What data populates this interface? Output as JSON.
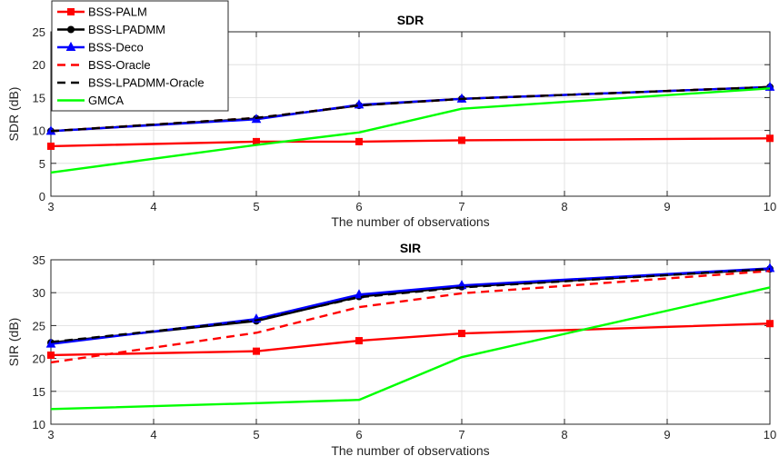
{
  "chart_data": [
    {
      "type": "line",
      "title": "SDR",
      "xlabel": "The number of observations",
      "ylabel": "SDR (dB)",
      "xlim": [
        3,
        10
      ],
      "ylim": [
        0,
        25
      ],
      "xticks": [
        3,
        4,
        5,
        6,
        7,
        8,
        9,
        10
      ],
      "yticks": [
        0,
        5,
        10,
        15,
        20,
        25
      ],
      "grid": true,
      "legend": "top-left",
      "x": [
        3,
        5,
        6,
        7,
        10
      ],
      "series": [
        {
          "name": "BSS-PALM",
          "values": [
            7.6,
            8.3,
            8.3,
            8.5,
            8.8
          ],
          "color": "#ff0000",
          "dash": "solid",
          "marker": "square"
        },
        {
          "name": "BSS-LPADMM",
          "values": [
            9.9,
            11.8,
            13.8,
            14.8,
            16.6
          ],
          "color": "#000000",
          "dash": "solid",
          "marker": "circle"
        },
        {
          "name": "BSS-Deco",
          "values": [
            9.9,
            11.7,
            13.9,
            14.8,
            16.6
          ],
          "color": "#0000ff",
          "dash": "solid",
          "marker": "triangle"
        },
        {
          "name": "BSS-Oracle",
          "values": [
            9.9,
            11.9,
            13.8,
            14.8,
            16.6
          ],
          "color": "#ff0000",
          "dash": "dashed",
          "marker": "none"
        },
        {
          "name": "BSS-LPADMM-Oracle",
          "values": [
            9.9,
            11.9,
            13.8,
            14.8,
            16.6
          ],
          "color": "#000000",
          "dash": "dashed",
          "marker": "none"
        },
        {
          "name": "GMCA",
          "values": [
            3.6,
            7.8,
            9.7,
            13.3,
            16.4
          ],
          "color": "#00ff00",
          "dash": "solid",
          "marker": "none"
        }
      ]
    },
    {
      "type": "line",
      "title": "SIR",
      "xlabel": "The number of observations",
      "ylabel": "SIR (dB)",
      "xlim": [
        3,
        10
      ],
      "ylim": [
        10,
        35
      ],
      "xticks": [
        3,
        4,
        5,
        6,
        7,
        8,
        9,
        10
      ],
      "yticks": [
        10,
        15,
        20,
        25,
        30,
        35
      ],
      "grid": true,
      "x": [
        3,
        5,
        6,
        7,
        10
      ],
      "series": [
        {
          "name": "BSS-PALM",
          "values": [
            20.5,
            21.1,
            22.7,
            23.8,
            25.3
          ],
          "color": "#ff0000",
          "dash": "solid",
          "marker": "square"
        },
        {
          "name": "BSS-LPADMM",
          "values": [
            22.4,
            25.7,
            29.4,
            30.9,
            33.6
          ],
          "color": "#000000",
          "dash": "solid",
          "marker": "circle"
        },
        {
          "name": "BSS-Deco",
          "values": [
            22.2,
            26.0,
            29.7,
            31.1,
            33.7
          ],
          "color": "#0000ff",
          "dash": "solid",
          "marker": "triangle"
        },
        {
          "name": "BSS-Oracle",
          "values": [
            19.4,
            23.9,
            27.8,
            29.9,
            33.3
          ],
          "color": "#ff0000",
          "dash": "dashed",
          "marker": "none"
        },
        {
          "name": "BSS-LPADMM-Oracle",
          "values": [
            22.5,
            25.8,
            29.3,
            30.8,
            33.6
          ],
          "color": "#000000",
          "dash": "dashed",
          "marker": "none"
        },
        {
          "name": "GMCA",
          "values": [
            12.3,
            13.2,
            13.7,
            20.2,
            30.8
          ],
          "color": "#00ff00",
          "dash": "solid",
          "marker": "none"
        }
      ]
    }
  ]
}
